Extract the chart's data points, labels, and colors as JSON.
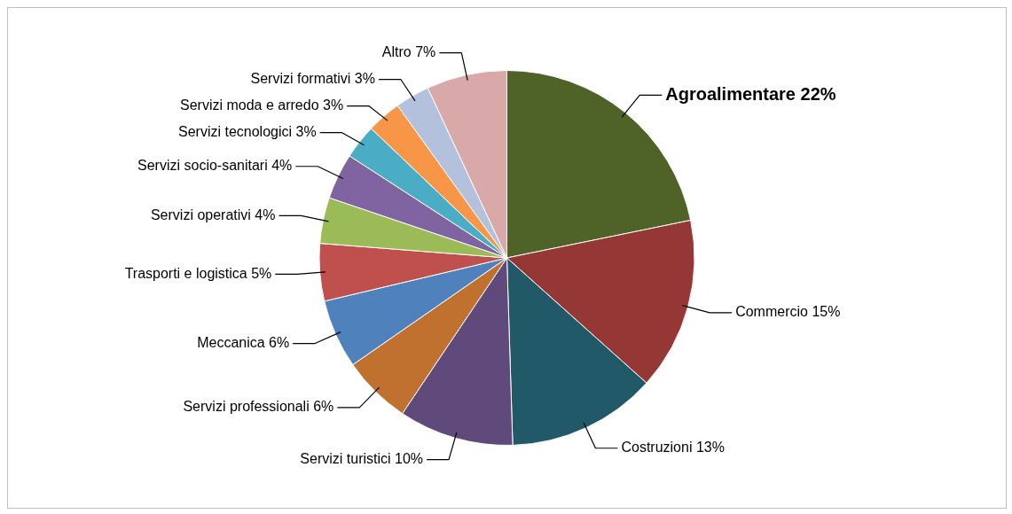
{
  "chart_data": {
    "type": "pie",
    "legend": false,
    "categories": [
      "Agroalimentare",
      "Commercio",
      "Costruzioni",
      "Servizi turistici",
      "Servizi professionali",
      "Meccanica",
      "Trasporti e logistica",
      "Servizi operativi",
      "Servizi socio-sanitari",
      "Servizi tecnologici",
      "Servizi moda e arredo",
      "Servizi formativi",
      "Altro"
    ],
    "values": [
      22,
      15,
      13,
      10,
      6,
      6,
      5,
      4,
      4,
      3,
      3,
      3,
      7
    ],
    "value_labels": [
      "22%",
      "15%",
      "13%",
      "10%",
      "6%",
      "6%",
      "5%",
      "4%",
      "4%",
      "3%",
      "3%",
      "3%",
      "7%"
    ],
    "colors": [
      "#4f6228",
      "#953735",
      "#215968",
      "#604a7b",
      "#c0712f",
      "#4f81bd",
      "#c0504d",
      "#9bbb59",
      "#8064a2",
      "#4bacc6",
      "#f79646",
      "#b3c1dd",
      "#d9a8a8"
    ]
  }
}
